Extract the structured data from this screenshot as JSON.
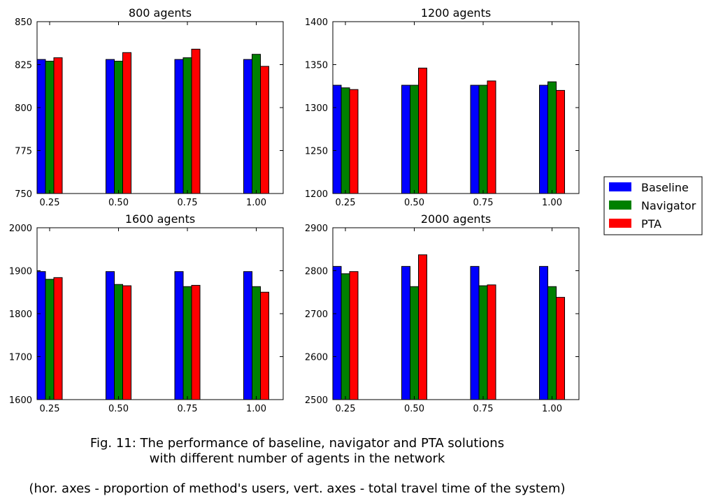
{
  "chart_data": [
    {
      "type": "bar",
      "title": "800 agents",
      "categories": [
        "0.25",
        "0.50",
        "0.75",
        "1.00"
      ],
      "ylim": [
        750,
        850
      ],
      "yticks": [
        "750",
        "775",
        "800",
        "825",
        "850"
      ],
      "series": [
        {
          "name": "Baseline",
          "values": [
            828,
            828,
            828,
            828
          ]
        },
        {
          "name": "Navigator",
          "values": [
            827,
            827,
            829,
            831
          ]
        },
        {
          "name": "PTA",
          "values": [
            829,
            832,
            834,
            824
          ]
        }
      ]
    },
    {
      "type": "bar",
      "title": "1200 agents",
      "categories": [
        "0.25",
        "0.50",
        "0.75",
        "1.00"
      ],
      "ylim": [
        1200,
        1400
      ],
      "yticks": [
        "1200",
        "1250",
        "1300",
        "1350",
        "1400"
      ],
      "series": [
        {
          "name": "Baseline",
          "values": [
            1326,
            1326,
            1326,
            1326
          ]
        },
        {
          "name": "Navigator",
          "values": [
            1323,
            1326,
            1326,
            1330
          ]
        },
        {
          "name": "PTA",
          "values": [
            1321,
            1346,
            1331,
            1320
          ]
        }
      ]
    },
    {
      "type": "bar",
      "title": "1600 agents",
      "categories": [
        "0.25",
        "0.50",
        "0.75",
        "1.00"
      ],
      "ylim": [
        1600,
        2000
      ],
      "yticks": [
        "1600",
        "1700",
        "1800",
        "1900",
        "2000"
      ],
      "series": [
        {
          "name": "Baseline",
          "values": [
            1898,
            1898,
            1898,
            1898
          ]
        },
        {
          "name": "Navigator",
          "values": [
            1880,
            1868,
            1863,
            1863
          ]
        },
        {
          "name": "PTA",
          "values": [
            1884,
            1865,
            1866,
            1850
          ]
        }
      ]
    },
    {
      "type": "bar",
      "title": "2000 agents",
      "categories": [
        "0.25",
        "0.50",
        "0.75",
        "1.00"
      ],
      "ylim": [
        2500,
        2900
      ],
      "yticks": [
        "2500",
        "2600",
        "2700",
        "2800",
        "2900"
      ],
      "series": [
        {
          "name": "Baseline",
          "values": [
            2810,
            2810,
            2810,
            2810
          ]
        },
        {
          "name": "Navigator",
          "values": [
            2793,
            2763,
            2765,
            2763
          ]
        },
        {
          "name": "PTA",
          "values": [
            2798,
            2837,
            2767,
            2738
          ]
        }
      ]
    }
  ],
  "legend": {
    "placement": "right",
    "entries": [
      {
        "label": "Baseline",
        "color": "#0000ff"
      },
      {
        "label": "Navigator",
        "color": "#008000"
      },
      {
        "label": "PTA",
        "color": "#ff0000"
      }
    ]
  },
  "caption": {
    "line1": "Fig. 11: The performance of baseline, navigator and PTA solutions",
    "line2": "with different number of agents in the network",
    "line3": "(hor. axes - proportion of method's users, vert. axes - total travel time of the system)"
  }
}
